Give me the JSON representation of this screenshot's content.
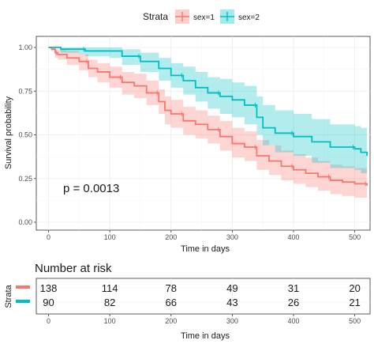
{
  "chart_data": [
    {
      "type": "line",
      "subtype": "kaplan-meier survival curve with confidence bands",
      "xlabel": "Time in days",
      "ylabel": "Survival probability",
      "xlim": [
        -20,
        525
      ],
      "ylim": [
        0,
        1
      ],
      "x_ticks": [
        0,
        100,
        200,
        300,
        400,
        500
      ],
      "y_ticks": [
        "0.00",
        "0.25",
        "0.50",
        "0.75",
        "1.00"
      ],
      "grid": true,
      "legend": {
        "title": "Strata",
        "position": "top",
        "entries": [
          "sex=1",
          "sex=2"
        ]
      },
      "annotation": "p = 0.0013",
      "series": [
        {
          "name": "sex=1",
          "color": "#F8766D",
          "band_color": "#F8766D",
          "points": [
            [
              0,
              1.0
            ],
            [
              5,
              0.99
            ],
            [
              11,
              0.97
            ],
            [
              15,
              0.96
            ],
            [
              30,
              0.94
            ],
            [
              50,
              0.92
            ],
            [
              65,
              0.88
            ],
            [
              80,
              0.86
            ],
            [
              100,
              0.83
            ],
            [
              120,
              0.8
            ],
            [
              140,
              0.78
            ],
            [
              160,
              0.74
            ],
            [
              180,
              0.69
            ],
            [
              190,
              0.64
            ],
            [
              200,
              0.62
            ],
            [
              220,
              0.58
            ],
            [
              240,
              0.56
            ],
            [
              260,
              0.53
            ],
            [
              280,
              0.49
            ],
            [
              300,
              0.45
            ],
            [
              320,
              0.43
            ],
            [
              340,
              0.38
            ],
            [
              360,
              0.35
            ],
            [
              380,
              0.32
            ],
            [
              400,
              0.3
            ],
            [
              420,
              0.28
            ],
            [
              440,
              0.26
            ],
            [
              460,
              0.24
            ],
            [
              480,
              0.23
            ],
            [
              500,
              0.22
            ],
            [
              520,
              0.21
            ]
          ],
          "upper": [
            [
              0,
              1.0
            ],
            [
              5,
              1.0
            ],
            [
              11,
              0.99
            ],
            [
              15,
              0.99
            ],
            [
              30,
              0.98
            ],
            [
              50,
              0.96
            ],
            [
              65,
              0.93
            ],
            [
              80,
              0.91
            ],
            [
              100,
              0.89
            ],
            [
              120,
              0.86
            ],
            [
              140,
              0.85
            ],
            [
              160,
              0.81
            ],
            [
              180,
              0.76
            ],
            [
              190,
              0.72
            ],
            [
              200,
              0.7
            ],
            [
              220,
              0.66
            ],
            [
              240,
              0.64
            ],
            [
              260,
              0.61
            ],
            [
              280,
              0.58
            ],
            [
              300,
              0.54
            ],
            [
              320,
              0.52
            ],
            [
              340,
              0.47
            ],
            [
              360,
              0.44
            ],
            [
              380,
              0.41
            ],
            [
              400,
              0.39
            ],
            [
              420,
              0.37
            ],
            [
              440,
              0.35
            ],
            [
              460,
              0.33
            ],
            [
              480,
              0.32
            ],
            [
              500,
              0.31
            ],
            [
              520,
              0.3
            ]
          ],
          "lower": [
            [
              0,
              1.0
            ],
            [
              5,
              0.98
            ],
            [
              11,
              0.94
            ],
            [
              15,
              0.93
            ],
            [
              30,
              0.9
            ],
            [
              50,
              0.87
            ],
            [
              65,
              0.83
            ],
            [
              80,
              0.8
            ],
            [
              100,
              0.77
            ],
            [
              120,
              0.73
            ],
            [
              140,
              0.71
            ],
            [
              160,
              0.67
            ],
            [
              180,
              0.62
            ],
            [
              190,
              0.56
            ],
            [
              200,
              0.54
            ],
            [
              220,
              0.5
            ],
            [
              240,
              0.48
            ],
            [
              260,
              0.45
            ],
            [
              280,
              0.41
            ],
            [
              300,
              0.37
            ],
            [
              320,
              0.35
            ],
            [
              340,
              0.3
            ],
            [
              360,
              0.27
            ],
            [
              380,
              0.24
            ],
            [
              400,
              0.22
            ],
            [
              420,
              0.2
            ],
            [
              440,
              0.18
            ],
            [
              460,
              0.16
            ],
            [
              480,
              0.15
            ],
            [
              500,
              0.14
            ],
            [
              520,
              0.13
            ]
          ]
        },
        {
          "name": "sex=2",
          "color": "#00BFC4",
          "band_color": "#00BFC4",
          "points": [
            [
              0,
              1.0
            ],
            [
              20,
              0.99
            ],
            [
              50,
              0.99
            ],
            [
              60,
              0.98
            ],
            [
              100,
              0.98
            ],
            [
              120,
              0.95
            ],
            [
              150,
              0.92
            ],
            [
              180,
              0.88
            ],
            [
              200,
              0.84
            ],
            [
              220,
              0.81
            ],
            [
              240,
              0.77
            ],
            [
              260,
              0.74
            ],
            [
              280,
              0.72
            ],
            [
              300,
              0.7
            ],
            [
              320,
              0.67
            ],
            [
              340,
              0.6
            ],
            [
              350,
              0.54
            ],
            [
              370,
              0.51
            ],
            [
              400,
              0.49
            ],
            [
              430,
              0.46
            ],
            [
              460,
              0.43
            ],
            [
              500,
              0.42
            ],
            [
              510,
              0.4
            ],
            [
              520,
              0.38
            ]
          ],
          "upper": [
            [
              0,
              1.0
            ],
            [
              20,
              1.0
            ],
            [
              50,
              1.0
            ],
            [
              60,
              1.0
            ],
            [
              100,
              1.0
            ],
            [
              120,
              0.99
            ],
            [
              150,
              0.97
            ],
            [
              180,
              0.94
            ],
            [
              200,
              0.91
            ],
            [
              220,
              0.89
            ],
            [
              240,
              0.86
            ],
            [
              260,
              0.83
            ],
            [
              280,
              0.82
            ],
            [
              300,
              0.8
            ],
            [
              320,
              0.78
            ],
            [
              340,
              0.72
            ],
            [
              350,
              0.67
            ],
            [
              370,
              0.64
            ],
            [
              400,
              0.62
            ],
            [
              430,
              0.59
            ],
            [
              460,
              0.56
            ],
            [
              500,
              0.55
            ],
            [
              510,
              0.54
            ],
            [
              520,
              0.52
            ]
          ],
          "lower": [
            [
              0,
              1.0
            ],
            [
              20,
              0.97
            ],
            [
              50,
              0.96
            ],
            [
              60,
              0.95
            ],
            [
              100,
              0.94
            ],
            [
              120,
              0.9
            ],
            [
              150,
              0.86
            ],
            [
              180,
              0.81
            ],
            [
              200,
              0.77
            ],
            [
              220,
              0.73
            ],
            [
              240,
              0.69
            ],
            [
              260,
              0.65
            ],
            [
              280,
              0.62
            ],
            [
              300,
              0.6
            ],
            [
              320,
              0.56
            ],
            [
              340,
              0.5
            ],
            [
              350,
              0.44
            ],
            [
              370,
              0.4
            ],
            [
              400,
              0.38
            ],
            [
              430,
              0.34
            ],
            [
              460,
              0.31
            ],
            [
              500,
              0.3
            ],
            [
              510,
              0.28
            ],
            [
              520,
              0.25
            ]
          ]
        }
      ]
    },
    {
      "type": "table",
      "title": "Number at risk",
      "ylabel": "Strata",
      "xlabel": "Time in days",
      "x_ticks": [
        0,
        100,
        200,
        300,
        400,
        500
      ],
      "rows": [
        {
          "name": "sex=1",
          "color": "#F8766D",
          "values": [
            138,
            114,
            78,
            49,
            31,
            20
          ]
        },
        {
          "name": "sex=2",
          "color": "#00BFC4",
          "values": [
            90,
            82,
            66,
            43,
            26,
            21
          ]
        }
      ]
    }
  ]
}
